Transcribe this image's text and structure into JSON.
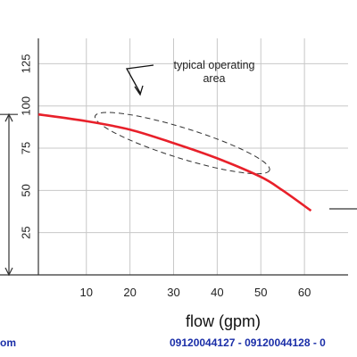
{
  "chart_data": {
    "type": "line",
    "xlabel": "flow (gpm)",
    "ylabel": "",
    "xlim": [
      -1,
      70
    ],
    "ylim": [
      0,
      140
    ],
    "x_ticks": [
      10,
      20,
      30,
      40,
      50,
      60
    ],
    "y_ticks": [
      25,
      50,
      75,
      100,
      125
    ],
    "grid": true,
    "series": [
      {
        "color": "#e8202a",
        "x": [
          -1,
          10,
          20,
          30,
          40,
          50,
          55,
          61.5
        ],
        "y": [
          95,
          91,
          86,
          78,
          69,
          58,
          50,
          38
        ]
      }
    ],
    "annotation": {
      "lines": [
        "typical operating",
        "area"
      ],
      "ellipse_x_range": [
        12,
        52
      ],
      "ellipse_y_range": [
        62,
        94
      ]
    },
    "left_marker_y": 95
  },
  "footer": {
    "left_text": "om",
    "right_text": "09120044127 - 09120044128 - 0",
    "color": "#1a2ea8"
  }
}
